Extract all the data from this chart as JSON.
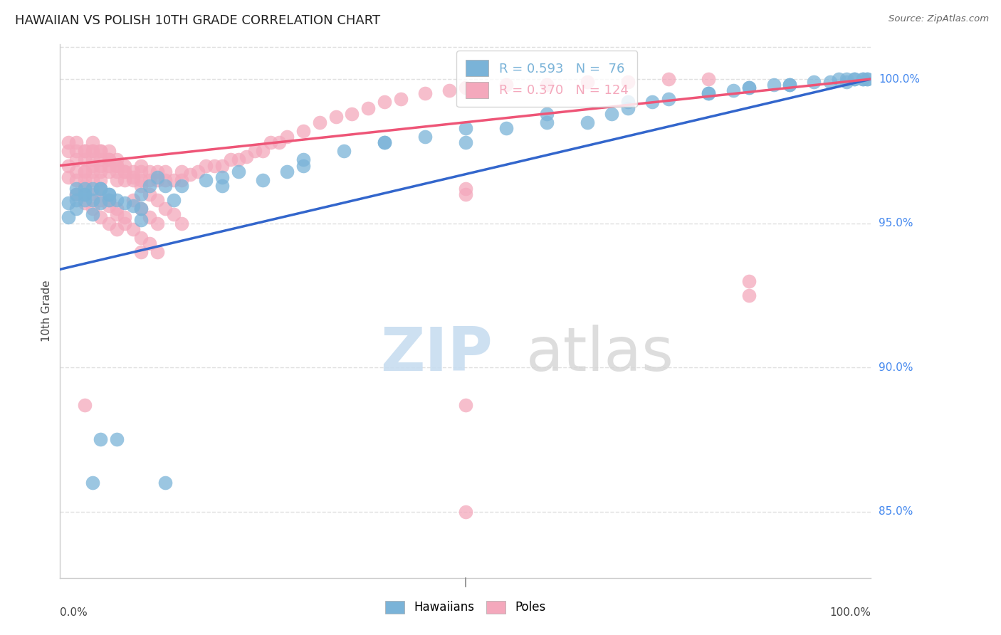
{
  "title": "HAWAIIAN VS POLISH 10TH GRADE CORRELATION CHART",
  "source": "Source: ZipAtlas.com",
  "ylabel": "10th Grade",
  "right_ytick_vals": [
    0.85,
    0.9,
    0.95,
    1.0
  ],
  "right_ytick_labels": [
    "85.0%",
    "90.0%",
    "95.0%",
    "100.0%"
  ],
  "xlim": [
    0.0,
    1.0
  ],
  "ylim": [
    0.827,
    1.012
  ],
  "blue_color": "#7ab3d8",
  "pink_color": "#f4a8bc",
  "blue_line_color": "#3366cc",
  "pink_line_color": "#ee5577",
  "grid_color": "#e0e0e0",
  "background_color": "#ffffff",
  "legend_blue_label": "R = 0.593   N =  76",
  "legend_pink_label": "R = 0.370   N = 124",
  "blue_line_x0": 0.0,
  "blue_line_y0": 0.934,
  "blue_line_x1": 1.0,
  "blue_line_y1": 1.0,
  "pink_line_x0": 0.0,
  "pink_line_y0": 0.97,
  "pink_line_x1": 1.0,
  "pink_line_y1": 1.0,
  "hawaiians_x": [
    0.01,
    0.01,
    0.02,
    0.02,
    0.03,
    0.03,
    0.04,
    0.04,
    0.05,
    0.05,
    0.06,
    0.06,
    0.07,
    0.08,
    0.09,
    0.1,
    0.1,
    0.11,
    0.12,
    0.13,
    0.14,
    0.15,
    0.18,
    0.2,
    0.22,
    0.25,
    0.28,
    0.3,
    0.35,
    0.4,
    0.45,
    0.5,
    0.55,
    0.6,
    0.65,
    0.68,
    0.7,
    0.73,
    0.75,
    0.8,
    0.83,
    0.85,
    0.88,
    0.9,
    0.93,
    0.95,
    0.97,
    0.98,
    0.99,
    0.995,
    0.995,
    0.99,
    0.98,
    0.97,
    0.96,
    0.9,
    0.85,
    0.8,
    0.7,
    0.6,
    0.5,
    0.4,
    0.3,
    0.2,
    0.13,
    0.1,
    0.07,
    0.05,
    0.04,
    0.03,
    0.02,
    0.02,
    0.03,
    0.04,
    0.05,
    0.06
  ],
  "hawaiians_y": [
    0.957,
    0.952,
    0.962,
    0.955,
    0.96,
    0.958,
    0.958,
    0.953,
    0.962,
    0.957,
    0.958,
    0.96,
    0.958,
    0.957,
    0.956,
    0.96,
    0.955,
    0.963,
    0.966,
    0.963,
    0.958,
    0.963,
    0.965,
    0.963,
    0.968,
    0.965,
    0.968,
    0.97,
    0.975,
    0.978,
    0.98,
    0.978,
    0.983,
    0.985,
    0.985,
    0.988,
    0.99,
    0.992,
    0.993,
    0.995,
    0.996,
    0.997,
    0.998,
    0.998,
    0.999,
    0.999,
    1.0,
    1.0,
    1.0,
    1.0,
    1.0,
    1.0,
    1.0,
    0.999,
    1.0,
    0.998,
    0.997,
    0.995,
    0.992,
    0.988,
    0.983,
    0.978,
    0.972,
    0.966,
    0.86,
    0.951,
    0.875,
    0.875,
    0.86,
    0.96,
    0.96,
    0.958,
    0.962,
    0.962,
    0.962,
    0.96
  ],
  "poles_x": [
    0.01,
    0.01,
    0.01,
    0.02,
    0.02,
    0.02,
    0.02,
    0.03,
    0.03,
    0.03,
    0.03,
    0.04,
    0.04,
    0.04,
    0.04,
    0.04,
    0.05,
    0.05,
    0.05,
    0.05,
    0.05,
    0.06,
    0.06,
    0.06,
    0.06,
    0.07,
    0.07,
    0.07,
    0.07,
    0.08,
    0.08,
    0.08,
    0.09,
    0.09,
    0.1,
    0.1,
    0.1,
    0.11,
    0.11,
    0.12,
    0.12,
    0.13,
    0.13,
    0.14,
    0.15,
    0.15,
    0.16,
    0.17,
    0.18,
    0.19,
    0.2,
    0.21,
    0.22,
    0.23,
    0.24,
    0.25,
    0.26,
    0.27,
    0.28,
    0.3,
    0.32,
    0.34,
    0.36,
    0.38,
    0.4,
    0.42,
    0.45,
    0.48,
    0.5,
    0.55,
    0.6,
    0.65,
    0.7,
    0.75,
    0.8,
    0.85,
    0.5,
    0.01,
    0.02,
    0.03,
    0.04,
    0.05,
    0.06,
    0.07,
    0.08,
    0.09,
    0.1,
    0.11,
    0.12,
    0.13,
    0.14,
    0.15,
    0.03,
    0.04,
    0.05,
    0.06,
    0.07,
    0.08,
    0.09,
    0.1,
    0.11,
    0.12,
    0.02,
    0.03,
    0.04,
    0.05,
    0.06,
    0.07,
    0.03,
    0.04,
    0.05,
    0.06,
    0.07,
    0.08,
    0.09,
    0.1,
    0.11,
    0.12,
    0.1,
    0.5,
    0.5,
    0.5,
    0.03,
    0.85
  ],
  "poles_y": [
    0.975,
    0.97,
    0.966,
    0.975,
    0.972,
    0.968,
    0.965,
    0.975,
    0.972,
    0.968,
    0.965,
    0.978,
    0.975,
    0.972,
    0.97,
    0.968,
    0.975,
    0.972,
    0.97,
    0.968,
    0.965,
    0.975,
    0.972,
    0.97,
    0.968,
    0.972,
    0.97,
    0.968,
    0.965,
    0.97,
    0.968,
    0.965,
    0.968,
    0.965,
    0.97,
    0.968,
    0.965,
    0.968,
    0.965,
    0.968,
    0.965,
    0.968,
    0.965,
    0.965,
    0.968,
    0.965,
    0.967,
    0.968,
    0.97,
    0.97,
    0.97,
    0.972,
    0.972,
    0.973,
    0.975,
    0.975,
    0.978,
    0.978,
    0.98,
    0.982,
    0.985,
    0.987,
    0.988,
    0.99,
    0.992,
    0.993,
    0.995,
    0.996,
    0.997,
    0.998,
    0.998,
    0.999,
    0.999,
    1.0,
    1.0,
    0.925,
    0.96,
    0.978,
    0.978,
    0.975,
    0.975,
    0.975,
    0.972,
    0.97,
    0.968,
    0.966,
    0.963,
    0.96,
    0.958,
    0.955,
    0.953,
    0.95,
    0.968,
    0.965,
    0.962,
    0.958,
    0.955,
    0.952,
    0.958,
    0.955,
    0.952,
    0.95,
    0.96,
    0.957,
    0.955,
    0.952,
    0.95,
    0.948,
    0.963,
    0.96,
    0.958,
    0.956,
    0.953,
    0.95,
    0.948,
    0.945,
    0.943,
    0.94,
    0.94,
    0.85,
    0.962,
    0.887,
    0.887,
    0.93
  ]
}
